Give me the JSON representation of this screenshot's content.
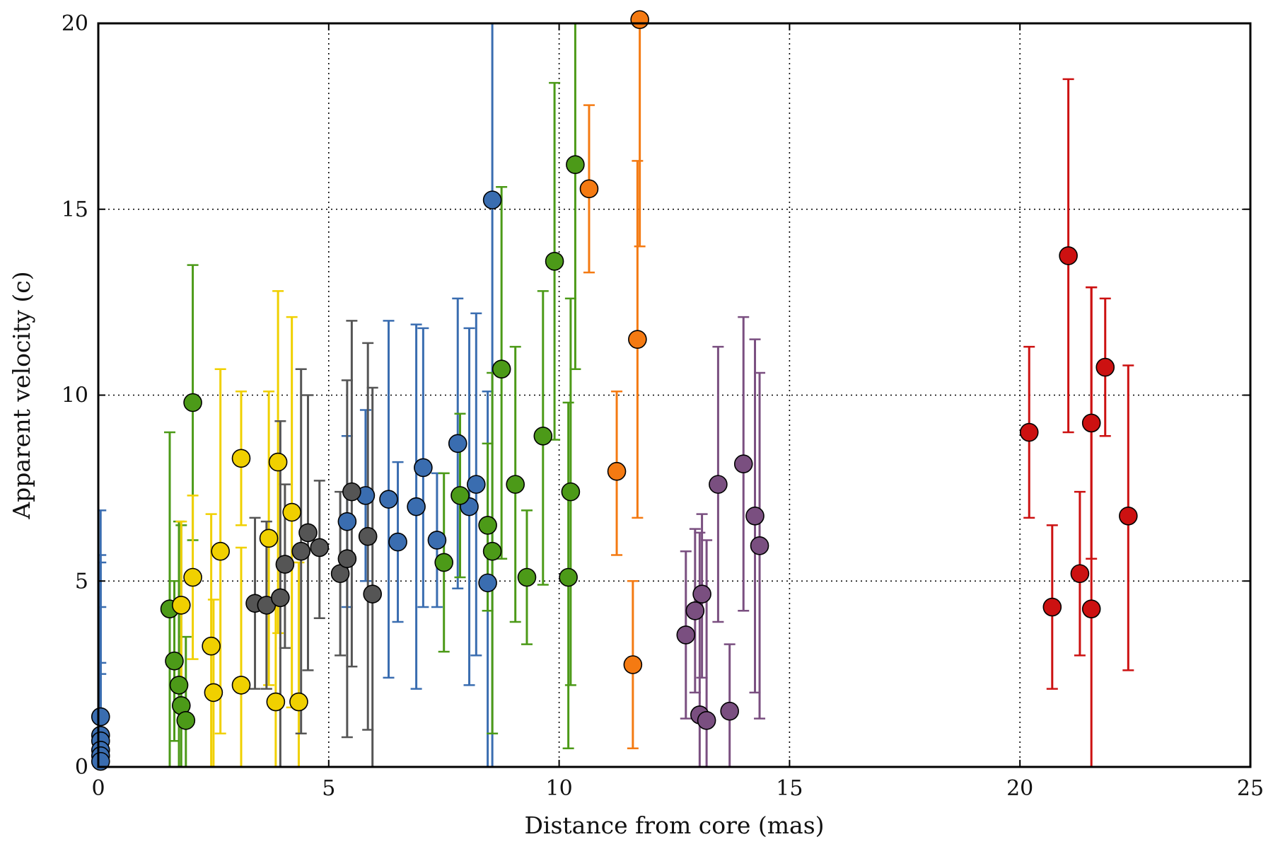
{
  "chart_data": {
    "type": "scatter",
    "title": "",
    "xlabel": "Distance from core (mas)",
    "ylabel": "Apparent velocity (c)",
    "xlim": [
      0,
      25
    ],
    "ylim": [
      0,
      20
    ],
    "xticks": [
      0,
      5,
      10,
      15,
      20,
      25
    ],
    "yticks": [
      0,
      5,
      10,
      15,
      20
    ],
    "grid": true,
    "series": [
      {
        "name": "blue",
        "color": "#3a6db0",
        "points": [
          {
            "x": 0.05,
            "y": 1.35,
            "lo": 0.0,
            "hi": 6.9
          },
          {
            "x": 0.05,
            "y": 0.85,
            "lo": 0.0,
            "hi": 5.7
          },
          {
            "x": 0.05,
            "y": 0.7,
            "lo": 0.0,
            "hi": 5.5
          },
          {
            "x": 0.05,
            "y": 0.45,
            "lo": 0.0,
            "hi": 4.3
          },
          {
            "x": 0.05,
            "y": 0.3,
            "lo": 0.0,
            "hi": 2.8
          },
          {
            "x": 0.05,
            "y": 0.15,
            "lo": 0.0,
            "hi": 2.5
          },
          {
            "x": 5.4,
            "y": 6.6,
            "lo": 4.3,
            "hi": 8.9
          },
          {
            "x": 5.8,
            "y": 7.3,
            "lo": 5.0,
            "hi": 9.6
          },
          {
            "x": 6.3,
            "y": 7.2,
            "lo": 2.4,
            "hi": 12.0
          },
          {
            "x": 6.5,
            "y": 6.05,
            "lo": 3.9,
            "hi": 8.2
          },
          {
            "x": 6.9,
            "y": 7.0,
            "lo": 2.1,
            "hi": 11.9
          },
          {
            "x": 7.05,
            "y": 8.05,
            "lo": 4.3,
            "hi": 11.8
          },
          {
            "x": 7.35,
            "y": 6.1,
            "lo": 4.3,
            "hi": 7.9
          },
          {
            "x": 7.8,
            "y": 8.7,
            "lo": 4.8,
            "hi": 12.6
          },
          {
            "x": 8.05,
            "y": 7.0,
            "lo": 2.2,
            "hi": 11.8
          },
          {
            "x": 8.2,
            "y": 7.6,
            "lo": 3.0,
            "hi": 12.2
          },
          {
            "x": 8.45,
            "y": 4.95,
            "lo": 0.0,
            "hi": 10.1
          },
          {
            "x": 8.55,
            "y": 15.25,
            "lo": 0.0,
            "hi": 20.0
          }
        ]
      },
      {
        "name": "green",
        "color": "#4c9a18",
        "points": [
          {
            "x": 1.55,
            "y": 4.25,
            "lo": 0.0,
            "hi": 9.0
          },
          {
            "x": 1.65,
            "y": 2.85,
            "lo": 0.7,
            "hi": 5.0
          },
          {
            "x": 1.75,
            "y": 2.2,
            "lo": 0.0,
            "hi": 6.6
          },
          {
            "x": 1.8,
            "y": 1.65,
            "lo": 0.0,
            "hi": 6.5
          },
          {
            "x": 1.9,
            "y": 1.25,
            "lo": 0.0,
            "hi": 3.5
          },
          {
            "x": 2.05,
            "y": 9.8,
            "lo": 6.1,
            "hi": 13.5
          },
          {
            "x": 7.5,
            "y": 5.5,
            "lo": 3.1,
            "hi": 7.9
          },
          {
            "x": 7.85,
            "y": 7.3,
            "lo": 5.1,
            "hi": 9.5
          },
          {
            "x": 8.45,
            "y": 6.5,
            "lo": 4.2,
            "hi": 8.7
          },
          {
            "x": 8.55,
            "y": 5.8,
            "lo": 0.9,
            "hi": 10.6
          },
          {
            "x": 8.75,
            "y": 10.7,
            "lo": 5.6,
            "hi": 15.6
          },
          {
            "x": 9.05,
            "y": 7.6,
            "lo": 3.9,
            "hi": 11.3
          },
          {
            "x": 9.3,
            "y": 5.1,
            "lo": 3.3,
            "hi": 6.9
          },
          {
            "x": 9.65,
            "y": 8.9,
            "lo": 4.9,
            "hi": 12.8
          },
          {
            "x": 9.9,
            "y": 13.6,
            "lo": 8.8,
            "hi": 18.4
          },
          {
            "x": 10.2,
            "y": 5.1,
            "lo": 0.5,
            "hi": 9.8
          },
          {
            "x": 10.25,
            "y": 7.4,
            "lo": 2.2,
            "hi": 12.6
          },
          {
            "x": 10.35,
            "y": 16.2,
            "lo": 10.7,
            "hi": 20.0
          }
        ]
      },
      {
        "name": "yellow",
        "color": "#f0d000",
        "points": [
          {
            "x": 1.8,
            "y": 4.35,
            "lo": 2.1,
            "hi": 6.6
          },
          {
            "x": 2.05,
            "y": 5.1,
            "lo": 2.9,
            "hi": 7.3
          },
          {
            "x": 2.45,
            "y": 3.25,
            "lo": 0.0,
            "hi": 6.8
          },
          {
            "x": 2.5,
            "y": 2.0,
            "lo": 0.0,
            "hi": 4.5
          },
          {
            "x": 2.65,
            "y": 5.8,
            "lo": 0.9,
            "hi": 10.7
          },
          {
            "x": 3.1,
            "y": 8.3,
            "lo": 6.5,
            "hi": 10.1
          },
          {
            "x": 3.1,
            "y": 2.2,
            "lo": 0.0,
            "hi": 5.9
          },
          {
            "x": 3.7,
            "y": 6.15,
            "lo": 2.2,
            "hi": 10.1
          },
          {
            "x": 3.85,
            "y": 1.75,
            "lo": 0.0,
            "hi": 4.5
          },
          {
            "x": 3.9,
            "y": 8.2,
            "lo": 3.6,
            "hi": 12.8
          },
          {
            "x": 4.2,
            "y": 6.85,
            "lo": 1.6,
            "hi": 12.1
          },
          {
            "x": 4.35,
            "y": 1.75,
            "lo": 0.0,
            "hi": 5.5
          }
        ]
      },
      {
        "name": "gray",
        "color": "#555555",
        "points": [
          {
            "x": 3.4,
            "y": 4.4,
            "lo": 2.1,
            "hi": 6.7
          },
          {
            "x": 3.65,
            "y": 4.35,
            "lo": 2.1,
            "hi": 6.6
          },
          {
            "x": 3.95,
            "y": 4.55,
            "lo": 0.0,
            "hi": 9.3
          },
          {
            "x": 4.05,
            "y": 5.45,
            "lo": 3.2,
            "hi": 7.6
          },
          {
            "x": 4.4,
            "y": 5.8,
            "lo": 0.9,
            "hi": 10.7
          },
          {
            "x": 4.55,
            "y": 6.3,
            "lo": 2.6,
            "hi": 10.0
          },
          {
            "x": 4.8,
            "y": 5.9,
            "lo": 4.0,
            "hi": 7.7
          },
          {
            "x": 5.25,
            "y": 5.2,
            "lo": 3.0,
            "hi": 7.4
          },
          {
            "x": 5.4,
            "y": 5.6,
            "lo": 0.8,
            "hi": 10.4
          },
          {
            "x": 5.5,
            "y": 7.4,
            "lo": 2.7,
            "hi": 12.0
          },
          {
            "x": 5.85,
            "y": 6.2,
            "lo": 1.0,
            "hi": 11.4
          },
          {
            "x": 5.95,
            "y": 4.65,
            "lo": 0.0,
            "hi": 10.2
          }
        ]
      },
      {
        "name": "orange",
        "color": "#f47a12",
        "points": [
          {
            "x": 10.65,
            "y": 15.55,
            "lo": 13.3,
            "hi": 17.8
          },
          {
            "x": 11.25,
            "y": 7.95,
            "lo": 5.7,
            "hi": 10.1
          },
          {
            "x": 11.6,
            "y": 2.75,
            "lo": 0.5,
            "hi": 5.0
          },
          {
            "x": 11.7,
            "y": 11.5,
            "lo": 6.7,
            "hi": 16.3
          },
          {
            "x": 11.75,
            "y": 20.1,
            "lo": 14.0,
            "hi": 20.0
          }
        ]
      },
      {
        "name": "purple",
        "color": "#7a4f80",
        "points": [
          {
            "x": 12.75,
            "y": 3.55,
            "lo": 1.3,
            "hi": 5.8
          },
          {
            "x": 12.95,
            "y": 4.2,
            "lo": 2.0,
            "hi": 6.4
          },
          {
            "x": 13.05,
            "y": 1.4,
            "lo": 0.0,
            "hi": 6.3
          },
          {
            "x": 13.1,
            "y": 4.65,
            "lo": 2.4,
            "hi": 6.8
          },
          {
            "x": 13.2,
            "y": 1.25,
            "lo": 0.0,
            "hi": 6.1
          },
          {
            "x": 13.45,
            "y": 7.6,
            "lo": 3.9,
            "hi": 11.3
          },
          {
            "x": 13.7,
            "y": 1.5,
            "lo": 0.0,
            "hi": 3.3
          },
          {
            "x": 14.0,
            "y": 8.15,
            "lo": 4.2,
            "hi": 12.1
          },
          {
            "x": 14.25,
            "y": 6.75,
            "lo": 2.0,
            "hi": 11.5
          },
          {
            "x": 14.35,
            "y": 5.95,
            "lo": 1.3,
            "hi": 10.6
          }
        ]
      },
      {
        "name": "red",
        "color": "#cc1111",
        "points": [
          {
            "x": 20.2,
            "y": 9.0,
            "lo": 6.7,
            "hi": 11.3
          },
          {
            "x": 20.7,
            "y": 4.3,
            "lo": 2.1,
            "hi": 6.5
          },
          {
            "x": 21.05,
            "y": 13.75,
            "lo": 9.0,
            "hi": 18.5
          },
          {
            "x": 21.3,
            "y": 5.2,
            "lo": 3.0,
            "hi": 7.4
          },
          {
            "x": 21.55,
            "y": 4.25,
            "lo": 0.0,
            "hi": 12.9
          },
          {
            "x": 21.55,
            "y": 9.25,
            "lo": 5.6,
            "hi": 12.9
          },
          {
            "x": 21.85,
            "y": 10.75,
            "lo": 8.9,
            "hi": 12.6
          },
          {
            "x": 22.35,
            "y": 6.75,
            "lo": 2.6,
            "hi": 10.8
          }
        ]
      }
    ]
  }
}
